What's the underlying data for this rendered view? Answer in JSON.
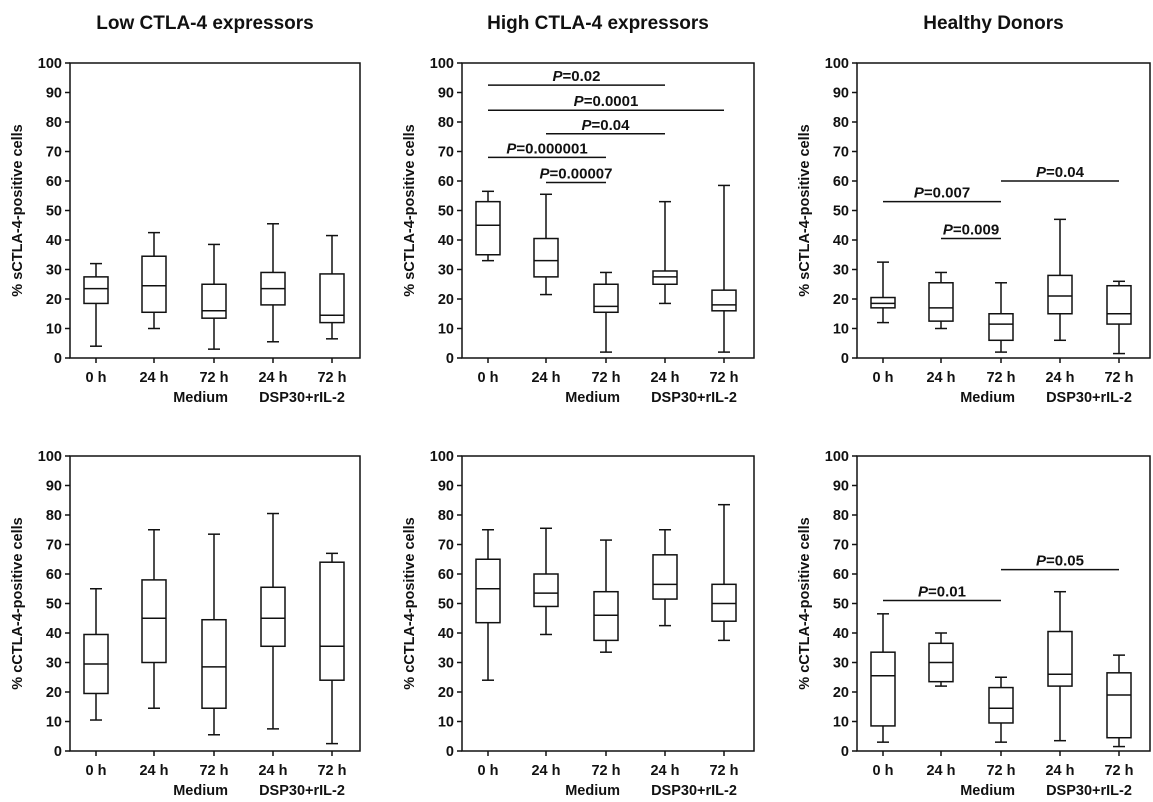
{
  "colors": {
    "ink": "#111111",
    "background": "#ffffff"
  },
  "group_labels": {
    "medium": "Medium",
    "dsp": "DSP30+rIL-2"
  },
  "chart_data": [
    {
      "type": "box",
      "title": "Low CTLA-4 expressors",
      "ylabel": "% sCTLA-4-positive cells",
      "ylim": [
        0,
        100
      ],
      "yticks": [
        0,
        10,
        20,
        30,
        40,
        50,
        60,
        70,
        80,
        90,
        100
      ],
      "categories": [
        "0 h",
        "24 h",
        "72 h",
        "24 h",
        "72 h"
      ],
      "boxes": [
        {
          "min": 4,
          "q1": 18.5,
          "median": 23.5,
          "q3": 27.5,
          "max": 32
        },
        {
          "min": 10,
          "q1": 15.5,
          "median": 24.5,
          "q3": 34.5,
          "max": 42.5
        },
        {
          "min": 3,
          "q1": 13.5,
          "median": 16,
          "q3": 25,
          "max": 38.5
        },
        {
          "min": 5.5,
          "q1": 18,
          "median": 23.5,
          "q3": 29,
          "max": 45.5
        },
        {
          "min": 6.5,
          "q1": 12,
          "median": 14.5,
          "q3": 28.5,
          "max": 41.5
        }
      ],
      "comparisons": []
    },
    {
      "type": "box",
      "title": "High CTLA-4 expressors",
      "ylabel": "% sCTLA-4-positive cells",
      "ylim": [
        0,
        100
      ],
      "yticks": [
        0,
        10,
        20,
        30,
        40,
        50,
        60,
        70,
        80,
        90,
        100
      ],
      "categories": [
        "0 h",
        "24 h",
        "72 h",
        "24 h",
        "72 h"
      ],
      "boxes": [
        {
          "min": 33,
          "q1": 35,
          "median": 45,
          "q3": 53,
          "max": 56.5
        },
        {
          "min": 21.5,
          "q1": 27.5,
          "median": 33,
          "q3": 40.5,
          "max": 55.5
        },
        {
          "min": 2,
          "q1": 15.5,
          "median": 17.5,
          "q3": 25,
          "max": 29
        },
        {
          "min": 18.5,
          "q1": 25,
          "median": 27.5,
          "q3": 29.5,
          "max": 53
        },
        {
          "min": 2,
          "q1": 16,
          "median": 18,
          "q3": 23,
          "max": 58.5
        }
      ],
      "comparisons": [
        {
          "from": 0,
          "to": 3,
          "y": 92.5,
          "prefix": "P",
          "value": "=0.02"
        },
        {
          "from": 0,
          "to": 4,
          "y": 84,
          "prefix": "P",
          "value": "=0.0001"
        },
        {
          "from": 1,
          "to": 3,
          "y": 76,
          "prefix": "P",
          "value": "=0.04"
        },
        {
          "from": 0,
          "to": 2,
          "y": 68,
          "prefix": "P",
          "value": "=0.000001"
        },
        {
          "from": 1,
          "to": 2,
          "y": 59.5,
          "prefix": "P",
          "value": "=0.00007"
        }
      ]
    },
    {
      "type": "box",
      "title": "Healthy Donors",
      "ylabel": "% sCTLA-4-positive cells",
      "ylim": [
        0,
        100
      ],
      "yticks": [
        0,
        10,
        20,
        30,
        40,
        50,
        60,
        70,
        80,
        90,
        100
      ],
      "categories": [
        "0 h",
        "24 h",
        "72 h",
        "24 h",
        "72 h"
      ],
      "boxes": [
        {
          "min": 12,
          "q1": 17,
          "median": 18.5,
          "q3": 20.5,
          "max": 32.5
        },
        {
          "min": 10,
          "q1": 12.5,
          "median": 17,
          "q3": 25.5,
          "max": 29
        },
        {
          "min": 2,
          "q1": 6,
          "median": 11.5,
          "q3": 15,
          "max": 25.5
        },
        {
          "min": 6,
          "q1": 15,
          "median": 21,
          "q3": 28,
          "max": 47
        },
        {
          "min": 1.5,
          "q1": 11.5,
          "median": 15,
          "q3": 24.5,
          "max": 26
        }
      ],
      "comparisons": [
        {
          "from": 0,
          "to": 2,
          "y": 53,
          "prefix": "P",
          "value": "=0.007"
        },
        {
          "from": 2,
          "to": 4,
          "y": 60,
          "prefix": "P",
          "value": "=0.04"
        },
        {
          "from": 1,
          "to": 2,
          "y": 40.5,
          "prefix": "P",
          "value": "=0.009"
        }
      ]
    },
    {
      "type": "box",
      "title": "",
      "ylabel": "% cCTLA-4-positive cells",
      "ylim": [
        0,
        100
      ],
      "yticks": [
        0,
        10,
        20,
        30,
        40,
        50,
        60,
        70,
        80,
        90,
        100
      ],
      "categories": [
        "0 h",
        "24 h",
        "72 h",
        "24 h",
        "72 h"
      ],
      "boxes": [
        {
          "min": 10.5,
          "q1": 19.5,
          "median": 29.5,
          "q3": 39.5,
          "max": 55
        },
        {
          "min": 14.5,
          "q1": 30,
          "median": 45,
          "q3": 58,
          "max": 75
        },
        {
          "min": 5.5,
          "q1": 14.5,
          "median": 28.5,
          "q3": 44.5,
          "max": 73.5
        },
        {
          "min": 7.5,
          "q1": 35.5,
          "median": 45,
          "q3": 55.5,
          "max": 80.5
        },
        {
          "min": 2.5,
          "q1": 24,
          "median": 35.5,
          "q3": 64,
          "max": 67
        }
      ],
      "comparisons": []
    },
    {
      "type": "box",
      "title": "",
      "ylabel": "% cCTLA-4-positive cells",
      "ylim": [
        0,
        100
      ],
      "yticks": [
        0,
        10,
        20,
        30,
        40,
        50,
        60,
        70,
        80,
        90,
        100
      ],
      "categories": [
        "0 h",
        "24 h",
        "72 h",
        "24 h",
        "72 h"
      ],
      "boxes": [
        {
          "min": 24,
          "q1": 43.5,
          "median": 55,
          "q3": 65,
          "max": 75
        },
        {
          "min": 39.5,
          "q1": 49,
          "median": 53.5,
          "q3": 60,
          "max": 75.5
        },
        {
          "min": 33.5,
          "q1": 37.5,
          "median": 46,
          "q3": 54,
          "max": 71.5
        },
        {
          "min": 42.5,
          "q1": 51.5,
          "median": 56.5,
          "q3": 66.5,
          "max": 75
        },
        {
          "min": 37.5,
          "q1": 44,
          "median": 50,
          "q3": 56.5,
          "max": 83.5
        }
      ],
      "comparisons": []
    },
    {
      "type": "box",
      "title": "",
      "ylabel": "% cCTLA-4-positive cells",
      "ylim": [
        0,
        100
      ],
      "yticks": [
        0,
        10,
        20,
        30,
        40,
        50,
        60,
        70,
        80,
        90,
        100
      ],
      "categories": [
        "0 h",
        "24 h",
        "72 h",
        "24 h",
        "72 h"
      ],
      "boxes": [
        {
          "min": 3,
          "q1": 8.5,
          "median": 25.5,
          "q3": 33.5,
          "max": 46.5
        },
        {
          "min": 22,
          "q1": 23.5,
          "median": 30,
          "q3": 36.5,
          "max": 40
        },
        {
          "min": 3,
          "q1": 9.5,
          "median": 14.5,
          "q3": 21.5,
          "max": 25
        },
        {
          "min": 3.5,
          "q1": 22,
          "median": 26,
          "q3": 40.5,
          "max": 54
        },
        {
          "min": 1.5,
          "q1": 4.5,
          "median": 19,
          "q3": 26.5,
          "max": 32.5
        }
      ],
      "comparisons": [
        {
          "from": 0,
          "to": 2,
          "y": 51,
          "prefix": "P",
          "value": "=0.01"
        },
        {
          "from": 2,
          "to": 4,
          "y": 61.5,
          "prefix": "P",
          "value": "=0.05"
        }
      ]
    }
  ]
}
